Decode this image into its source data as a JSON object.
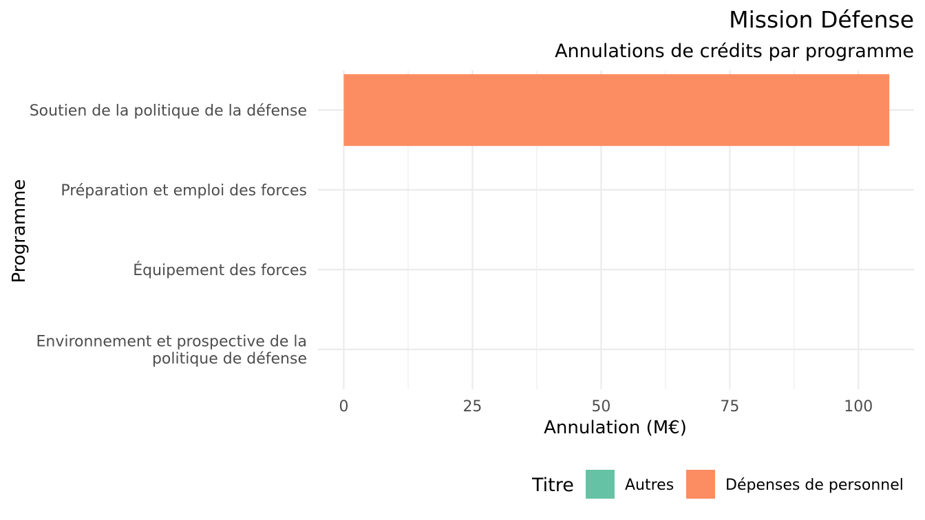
{
  "chart_data": {
    "type": "bar",
    "orientation": "horizontal",
    "stacked": true,
    "title": "Mission Défense",
    "subtitle": "Annulations de crédits par programme",
    "xlabel": "Annulation (M€)",
    "ylabel": "Programme",
    "xlim": [
      0,
      110
    ],
    "xticks": [
      0,
      25,
      50,
      75,
      100
    ],
    "grid": true,
    "legend_position": "bottom",
    "legend_title": "Titre",
    "categories": [
      {
        "lines": [
          "Soutien de la politique de la défense"
        ]
      },
      {
        "lines": [
          "Préparation et emploi des forces"
        ]
      },
      {
        "lines": [
          "Équipement des forces"
        ]
      },
      {
        "lines": [
          "Environnement et prospective de la",
          "politique de défense"
        ]
      }
    ],
    "series": [
      {
        "name": "Autres",
        "color": "#66c2a5",
        "values": [
          0,
          0,
          0,
          0
        ]
      },
      {
        "name": "Dépenses de personnel",
        "color": "#fc8d62",
        "values": [
          106,
          0,
          0,
          0
        ]
      }
    ]
  }
}
